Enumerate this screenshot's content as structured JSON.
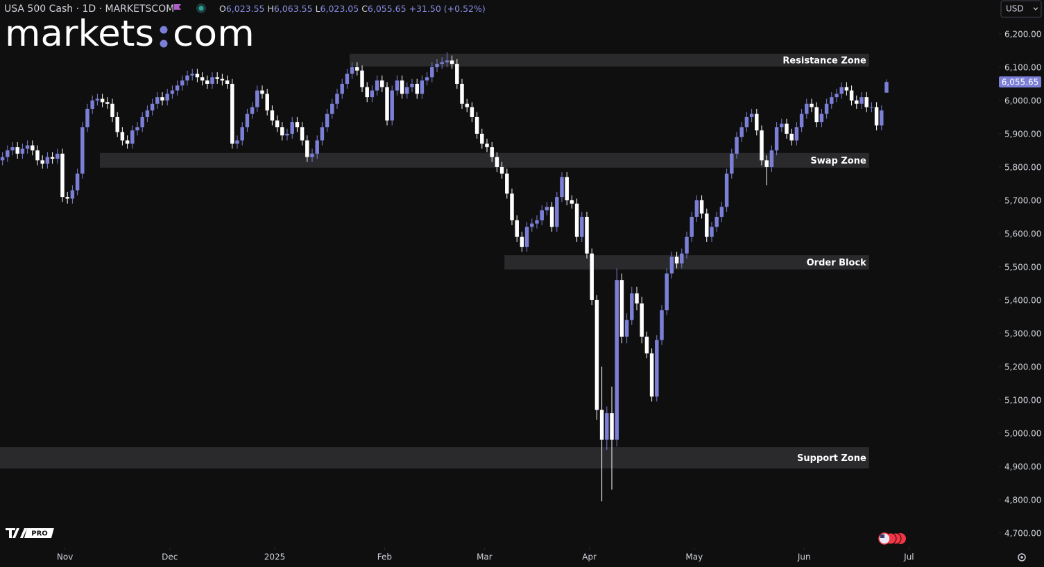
{
  "chart_data": {
    "type": "candlestick",
    "title": "USA 500 Cash · 1D · MARKETSCOM",
    "header": {
      "open_label": "O",
      "open": "6,023.55",
      "high_label": "H",
      "high": "6,063.55",
      "low_label": "L",
      "low": "6,023.05",
      "close_label": "C",
      "close": "6,055.65",
      "change": "+31.50 (+0.52%)"
    },
    "logo": {
      "left": "markets",
      "right": "com"
    },
    "currency": "USD",
    "badge": "PRO",
    "up_color": "#7b7fd6",
    "down_color": "#ffffff",
    "open": [
      5820,
      5830,
      5850,
      5860,
      5840,
      5855,
      5865,
      5850,
      5820,
      5810,
      5830,
      5825,
      5840,
      5710,
      5705,
      5730,
      5780,
      5920,
      5975,
      6000,
      6005,
      5995,
      5990,
      5950,
      5905,
      5880,
      5870,
      5910,
      5920,
      5950,
      5970,
      5990,
      6010,
      6000,
      6020,
      6030,
      6045,
      6060,
      6075,
      6080,
      6070,
      6060,
      6050,
      6070,
      6065,
      6060,
      6050,
      5870,
      5880,
      5920,
      5960,
      5980,
      6030,
      6020,
      5970,
      5940,
      5920,
      5895,
      5900,
      5935,
      5920,
      5880,
      5830,
      5840,
      5880,
      5920,
      5960,
      5990,
      6020,
      6050,
      6080,
      6100,
      6090,
      6040,
      6010,
      6030,
      6060,
      6040,
      5940,
      6030,
      6060,
      6020,
      6040,
      6050,
      6020,
      6060,
      6070,
      6100,
      6110,
      6115,
      6120,
      6110,
      6050,
      5990,
      5980,
      5950,
      5900,
      5870,
      5860,
      5830,
      5800,
      5780,
      5720,
      5640,
      5590,
      5560,
      5620,
      5630,
      5640,
      5670,
      5680,
      5620,
      5710,
      5770,
      5700,
      5690,
      5590,
      5650,
      5540,
      5400,
      5070,
      4980,
      5060,
      4980,
      5460,
      5290,
      5340,
      5420,
      5390,
      5290,
      5240,
      5110,
      5280,
      5370,
      5480,
      5530,
      5510,
      5540,
      5590,
      5650,
      5700,
      5660,
      5590,
      5620,
      5650,
      5680,
      5780,
      5840,
      5890,
      5920,
      5950,
      5960,
      5910,
      5820,
      5800,
      5850,
      5920,
      5930,
      5900,
      5880,
      5920,
      5960,
      5990,
      5980,
      5935,
      5960,
      5990,
      6010,
      6020,
      6040,
      6030,
      6000,
      5990,
      6010,
      5980,
      5980,
      5925,
      6023.55
    ],
    "high": [
      5845,
      5865,
      5875,
      5875,
      5870,
      5880,
      5880,
      5865,
      5835,
      5845,
      5845,
      5855,
      5855,
      5725,
      5745,
      5795,
      5935,
      5990,
      6015,
      6020,
      6020,
      6010,
      6005,
      5965,
      5920,
      5895,
      5925,
      5935,
      5965,
      5985,
      6005,
      6025,
      6025,
      6035,
      6045,
      6060,
      6075,
      6090,
      6095,
      6095,
      6085,
      6075,
      6085,
      6085,
      6080,
      6075,
      6065,
      5895,
      5935,
      5975,
      5995,
      6045,
      6045,
      6035,
      5985,
      5955,
      5935,
      5915,
      5950,
      5950,
      5935,
      5895,
      5855,
      5895,
      5935,
      5975,
      6005,
      6035,
      6065,
      6095,
      6115,
      6115,
      6105,
      6055,
      6045,
      6075,
      6075,
      6055,
      6045,
      6075,
      6075,
      6055,
      6065,
      6065,
      6075,
      6085,
      6115,
      6125,
      6130,
      6145,
      6135,
      6125,
      6065,
      6005,
      5995,
      5965,
      5915,
      5885,
      5875,
      5845,
      5815,
      5795,
      5735,
      5655,
      5605,
      5635,
      5645,
      5655,
      5685,
      5695,
      5695,
      5725,
      5785,
      5785,
      5715,
      5705,
      5665,
      5665,
      5555,
      5415,
      5200,
      5080,
      5140,
      5495,
      5480,
      5360,
      5440,
      5440,
      5410,
      5305,
      5255,
      5295,
      5385,
      5495,
      5545,
      5545,
      5555,
      5605,
      5665,
      5715,
      5715,
      5675,
      5635,
      5665,
      5695,
      5795,
      5855,
      5905,
      5935,
      5965,
      5975,
      5975,
      5925,
      5835,
      5865,
      5935,
      5945,
      5945,
      5915,
      5935,
      5975,
      6005,
      6005,
      5995,
      5975,
      6005,
      6025,
      6035,
      6055,
      6055,
      6045,
      6015,
      6025,
      6025,
      5995,
      5995,
      5985,
      6063.55
    ],
    "low": [
      5805,
      5815,
      5835,
      5825,
      5825,
      5840,
      5835,
      5805,
      5795,
      5795,
      5810,
      5810,
      5695,
      5690,
      5690,
      5715,
      5765,
      5905,
      5960,
      5985,
      5980,
      5975,
      5935,
      5890,
      5865,
      5855,
      5855,
      5895,
      5905,
      5935,
      5955,
      5975,
      5985,
      5985,
      6005,
      6015,
      6030,
      6045,
      6060,
      6055,
      6045,
      6035,
      6035,
      6050,
      6045,
      6035,
      5855,
      5855,
      5865,
      5905,
      5945,
      5965,
      6005,
      5955,
      5925,
      5905,
      5880,
      5880,
      5885,
      5905,
      5865,
      5815,
      5815,
      5825,
      5865,
      5905,
      5945,
      5975,
      6005,
      6035,
      6065,
      6075,
      6025,
      5995,
      5995,
      6015,
      6025,
      5925,
      5925,
      6015,
      6005,
      6005,
      6025,
      6005,
      6005,
      6045,
      6055,
      6085,
      6095,
      6100,
      6095,
      6035,
      5975,
      5965,
      5935,
      5885,
      5855,
      5845,
      5815,
      5785,
      5765,
      5705,
      5625,
      5575,
      5545,
      5545,
      5605,
      5615,
      5625,
      5655,
      5605,
      5605,
      5695,
      5685,
      5675,
      5575,
      5575,
      5525,
      5385,
      5040,
      4795,
      4950,
      4830,
      4960,
      5270,
      5270,
      5325,
      5370,
      5270,
      5225,
      5095,
      5095,
      5265,
      5355,
      5465,
      5495,
      5495,
      5525,
      5575,
      5635,
      5645,
      5575,
      5575,
      5605,
      5635,
      5665,
      5765,
      5825,
      5875,
      5905,
      5935,
      5895,
      5805,
      5745,
      5785,
      5835,
      5905,
      5885,
      5865,
      5865,
      5905,
      5945,
      5965,
      5920,
      5920,
      5945,
      5975,
      5995,
      6005,
      6015,
      5985,
      5975,
      5975,
      5965,
      5965,
      5910,
      5910,
      6023.05
    ],
    "close": [
      5830,
      5850,
      5860,
      5840,
      5855,
      5865,
      5850,
      5820,
      5810,
      5830,
      5825,
      5840,
      5710,
      5705,
      5730,
      5780,
      5920,
      5975,
      6000,
      6005,
      5995,
      5990,
      5950,
      5905,
      5880,
      5870,
      5910,
      5920,
      5950,
      5970,
      5990,
      6010,
      6000,
      6020,
      6030,
      6045,
      6060,
      6075,
      6080,
      6070,
      6060,
      6050,
      6070,
      6065,
      6060,
      6050,
      5870,
      5880,
      5920,
      5960,
      5980,
      6030,
      6020,
      5970,
      5940,
      5920,
      5895,
      5900,
      5935,
      5920,
      5880,
      5830,
      5840,
      5880,
      5920,
      5960,
      5990,
      6020,
      6050,
      6080,
      6100,
      6090,
      6040,
      6010,
      6030,
      6060,
      6040,
      5940,
      6030,
      6060,
      6020,
      6040,
      6050,
      6020,
      6060,
      6070,
      6100,
      6110,
      6115,
      6120,
      6110,
      6050,
      5990,
      5980,
      5950,
      5900,
      5870,
      5860,
      5830,
      5800,
      5780,
      5720,
      5640,
      5590,
      5560,
      5620,
      5630,
      5640,
      5670,
      5680,
      5620,
      5710,
      5770,
      5700,
      5690,
      5590,
      5650,
      5540,
      5400,
      5070,
      4980,
      5060,
      4980,
      5460,
      5290,
      5340,
      5420,
      5390,
      5290,
      5240,
      5110,
      5280,
      5370,
      5480,
      5530,
      5510,
      5540,
      5590,
      5650,
      5700,
      5660,
      5590,
      5620,
      5650,
      5680,
      5780,
      5840,
      5890,
      5920,
      5950,
      5960,
      5910,
      5820,
      5800,
      5850,
      5920,
      5930,
      5900,
      5880,
      5920,
      5960,
      5990,
      5980,
      5935,
      5960,
      5990,
      6010,
      6020,
      6040,
      6030,
      6000,
      5990,
      6010,
      5980,
      5980,
      5925,
      5970,
      6055.65
    ],
    "last_price_label": "6,055.65",
    "zones": [
      {
        "label": "Resistance Zone",
        "low": 6102,
        "high": 6140,
        "start": 70,
        "end": 174
      },
      {
        "label": "Swap Zone",
        "low": 5798,
        "high": 5842,
        "start": 20,
        "end": 174
      },
      {
        "label": "Order Block",
        "low": 5492,
        "high": 5535,
        "start": 101,
        "end": 174
      },
      {
        "label": "Support Zone",
        "low": 4894,
        "high": 4958,
        "start": 0,
        "end": 174
      }
    ],
    "xlim": [
      0,
      200
    ],
    "xticks": [
      {
        "value": 13,
        "label": "Nov"
      },
      {
        "value": 34,
        "label": "Dec"
      },
      {
        "value": 55,
        "label": "2025"
      },
      {
        "value": 77,
        "label": "Feb"
      },
      {
        "value": 97,
        "label": "Mar"
      },
      {
        "value": 118,
        "label": "Apr"
      },
      {
        "value": 139,
        "label": "May"
      },
      {
        "value": 161,
        "label": "Jun"
      },
      {
        "value": 182,
        "label": "Jul"
      }
    ],
    "ylim": [
      4656,
      6302
    ],
    "yticks": [
      {
        "value": 6200,
        "label": "6,200.00"
      },
      {
        "value": 6100,
        "label": "6,100.00"
      },
      {
        "value": 6000,
        "label": "6,000.00"
      },
      {
        "value": 5900,
        "label": "5,900.00"
      },
      {
        "value": 5800,
        "label": "5,800.00"
      },
      {
        "value": 5700,
        "label": "5,700.00"
      },
      {
        "value": 5600,
        "label": "5,600.00"
      },
      {
        "value": 5500,
        "label": "5,500.00"
      },
      {
        "value": 5400,
        "label": "5,400.00"
      },
      {
        "value": 5300,
        "label": "5,300.00"
      },
      {
        "value": 5200,
        "label": "5,200.00"
      },
      {
        "value": 5100,
        "label": "5,100.00"
      },
      {
        "value": 5000,
        "label": "5,000.00"
      },
      {
        "value": 4900,
        "label": "4,900.00"
      },
      {
        "value": 4800,
        "label": "4,800.00"
      },
      {
        "value": 4700,
        "label": "4,700.00"
      }
    ]
  }
}
